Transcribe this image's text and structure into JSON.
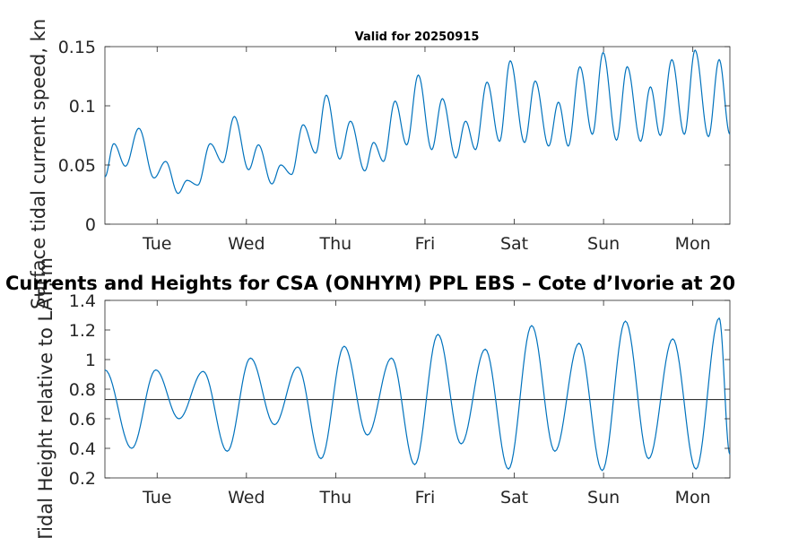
{
  "chart_data": [
    {
      "type": "line",
      "title": "Valid for 20250915",
      "ylabel": "Surface tidal current speed, kn",
      "xlabel": "",
      "x_ticks": [
        "Tue",
        "Wed",
        "Thu",
        "Fri",
        "Sat",
        "Sun",
        "Mon"
      ],
      "ylim": [
        0,
        0.15
      ],
      "y_ticks": [
        "0",
        "0.05",
        "0.1",
        "0.15"
      ],
      "grid": false,
      "line_color": "#0072BD",
      "extrema": [
        [
          0.0,
          0.04
        ],
        [
          0.1,
          0.068
        ],
        [
          0.23,
          0.049
        ],
        [
          0.38,
          0.081
        ],
        [
          0.55,
          0.039
        ],
        [
          0.68,
          0.053
        ],
        [
          0.82,
          0.026
        ],
        [
          0.92,
          0.037
        ],
        [
          1.04,
          0.033
        ],
        [
          1.18,
          0.068
        ],
        [
          1.32,
          0.052
        ],
        [
          1.45,
          0.091
        ],
        [
          1.61,
          0.046
        ],
        [
          1.72,
          0.067
        ],
        [
          1.87,
          0.034
        ],
        [
          1.97,
          0.05
        ],
        [
          2.09,
          0.042
        ],
        [
          2.22,
          0.084
        ],
        [
          2.36,
          0.06
        ],
        [
          2.48,
          0.109
        ],
        [
          2.63,
          0.055
        ],
        [
          2.75,
          0.087
        ],
        [
          2.91,
          0.045
        ],
        [
          3.01,
          0.069
        ],
        [
          3.12,
          0.053
        ],
        [
          3.25,
          0.104
        ],
        [
          3.38,
          0.067
        ],
        [
          3.51,
          0.126
        ],
        [
          3.66,
          0.063
        ],
        [
          3.78,
          0.106
        ],
        [
          3.93,
          0.056
        ],
        [
          4.04,
          0.087
        ],
        [
          4.15,
          0.063
        ],
        [
          4.28,
          0.12
        ],
        [
          4.42,
          0.07
        ],
        [
          4.54,
          0.138
        ],
        [
          4.7,
          0.069
        ],
        [
          4.82,
          0.121
        ],
        [
          4.97,
          0.066
        ],
        [
          5.08,
          0.103
        ],
        [
          5.19,
          0.066
        ],
        [
          5.32,
          0.133
        ],
        [
          5.46,
          0.076
        ],
        [
          5.58,
          0.145
        ],
        [
          5.73,
          0.071
        ],
        [
          5.85,
          0.133
        ],
        [
          6.0,
          0.07
        ],
        [
          6.11,
          0.116
        ],
        [
          6.22,
          0.075
        ],
        [
          6.35,
          0.139
        ],
        [
          6.49,
          0.076
        ],
        [
          6.61,
          0.147
        ],
        [
          6.76,
          0.074
        ],
        [
          6.88,
          0.139
        ],
        [
          7.0,
          0.076
        ]
      ]
    },
    {
      "type": "line",
      "title": "Currents and Heights for CSA (ONHYM) PPL EBS  – Cote d’Ivorie at 20",
      "ylabel": "Tidal Height relative to LAT, m",
      "xlabel": "",
      "x_ticks": [
        "Tue",
        "Wed",
        "Thu",
        "Fri",
        "Sat",
        "Sun",
        "Mon"
      ],
      "ylim": [
        0.2,
        1.4
      ],
      "y_ticks": [
        "0.2",
        "0.4",
        "0.6",
        "0.8",
        "1",
        "1.2",
        "1.4"
      ],
      "grid": false,
      "reference_line": 0.73,
      "line_color": "#0072BD",
      "extrema": [
        [
          0.0,
          0.93
        ],
        [
          0.3,
          0.4
        ],
        [
          0.57,
          0.93
        ],
        [
          0.83,
          0.6
        ],
        [
          1.1,
          0.92
        ],
        [
          1.37,
          0.38
        ],
        [
          1.63,
          1.01
        ],
        [
          1.9,
          0.56
        ],
        [
          2.16,
          0.95
        ],
        [
          2.42,
          0.33
        ],
        [
          2.68,
          1.09
        ],
        [
          2.94,
          0.49
        ],
        [
          3.21,
          1.01
        ],
        [
          3.47,
          0.29
        ],
        [
          3.73,
          1.17
        ],
        [
          3.99,
          0.43
        ],
        [
          4.26,
          1.07
        ],
        [
          4.52,
          0.26
        ],
        [
          4.78,
          1.23
        ],
        [
          5.04,
          0.38
        ],
        [
          5.31,
          1.11
        ],
        [
          5.57,
          0.25
        ],
        [
          5.83,
          1.26
        ],
        [
          6.09,
          0.33
        ],
        [
          6.36,
          1.14
        ],
        [
          6.62,
          0.26
        ],
        [
          6.88,
          1.28
        ],
        [
          7.0,
          0.36
        ]
      ]
    }
  ]
}
